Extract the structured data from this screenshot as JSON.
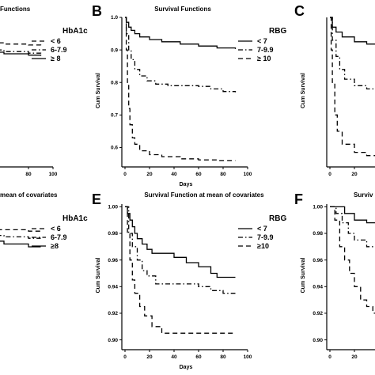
{
  "panels": [
    {
      "letter": "",
      "title": "Functions"
    },
    {
      "letter": "B",
      "title": "Survival Functions"
    },
    {
      "letter": "C",
      "title": ""
    },
    {
      "letter": "",
      "title": "mean of covariates"
    },
    {
      "letter": "E",
      "title": "Survival Function at mean of covariates"
    },
    {
      "letter": "F",
      "title": "Surviv"
    }
  ],
  "colors": {
    "line": "#000000",
    "background": "#ffffff"
  },
  "chart_data": [
    {
      "type": "line",
      "title": "Functions",
      "xlabel": "",
      "ylabel": "",
      "x_ticks": [
        "0",
        "80",
        "100"
      ],
      "xlim": [
        0,
        100
      ],
      "ylim": [
        0.55,
        1.0
      ],
      "legend_title": "HbA1c",
      "legend_position": "top-right",
      "series": [
        {
          "name": "< 6",
          "dash": "dashed",
          "points": [
            [
              0,
              0.93
            ],
            [
              20,
              0.925
            ],
            [
              40,
              0.922
            ],
            [
              60,
              0.918
            ],
            [
              80,
              0.915
            ],
            [
              90,
              0.914
            ]
          ]
        },
        {
          "name": "6-7.9",
          "dash": "dashdot",
          "points": [
            [
              0,
              0.925
            ],
            [
              20,
              0.91
            ],
            [
              40,
              0.9
            ],
            [
              60,
              0.895
            ],
            [
              80,
              0.89
            ],
            [
              90,
              0.889
            ]
          ]
        },
        {
          "name": "≥ 8",
          "dash": "solid",
          "points": [
            [
              0,
              0.915
            ],
            [
              20,
              0.9
            ],
            [
              40,
              0.893
            ],
            [
              60,
              0.888
            ],
            [
              80,
              0.884
            ],
            [
              90,
              0.882
            ]
          ]
        }
      ]
    },
    {
      "type": "line",
      "title": "Survival Functions",
      "xlabel": "Days",
      "ylabel": "Cum Survival",
      "x_ticks": [
        "0",
        "20",
        "40",
        "60",
        "80",
        "100"
      ],
      "y_ticks": [
        "0.6",
        "0.7",
        "0.8",
        "0.9",
        "1.0"
      ],
      "xlim": [
        0,
        100
      ],
      "ylim": [
        0.55,
        1.0
      ],
      "legend_title": "RBG",
      "legend_position": "top-right",
      "series": [
        {
          "name": "< 7",
          "dash": "solid",
          "points": [
            [
              0,
              1.0
            ],
            [
              1,
              0.985
            ],
            [
              3,
              0.97
            ],
            [
              5,
              0.96
            ],
            [
              8,
              0.95
            ],
            [
              12,
              0.94
            ],
            [
              20,
              0.932
            ],
            [
              30,
              0.925
            ],
            [
              45,
              0.918
            ],
            [
              60,
              0.912
            ],
            [
              75,
              0.906
            ],
            [
              90,
              0.903
            ]
          ]
        },
        {
          "name": "7-9.9",
          "dash": "dashdot",
          "points": [
            [
              0,
              1.0
            ],
            [
              1,
              0.95
            ],
            [
              3,
              0.9
            ],
            [
              5,
              0.87
            ],
            [
              8,
              0.84
            ],
            [
              12,
              0.82
            ],
            [
              18,
              0.805
            ],
            [
              25,
              0.795
            ],
            [
              35,
              0.79
            ],
            [
              55,
              0.79
            ],
            [
              60,
              0.788
            ],
            [
              70,
              0.78
            ],
            [
              80,
              0.772
            ],
            [
              90,
              0.77
            ]
          ]
        },
        {
          "name": "≥ 10",
          "dash": "dashed",
          "points": [
            [
              0,
              1.0
            ],
            [
              1,
              0.9
            ],
            [
              2,
              0.8
            ],
            [
              3,
              0.72
            ],
            [
              4,
              0.67
            ],
            [
              6,
              0.63
            ],
            [
              8,
              0.61
            ],
            [
              12,
              0.59
            ],
            [
              20,
              0.578
            ],
            [
              30,
              0.572
            ],
            [
              45,
              0.565
            ],
            [
              60,
              0.562
            ],
            [
              75,
              0.56
            ],
            [
              90,
              0.56
            ]
          ]
        }
      ]
    },
    {
      "type": "line",
      "title": "",
      "xlabel": "",
      "ylabel": "Cum Survival",
      "x_ticks": [
        "0",
        "20"
      ],
      "xlim": [
        0,
        100
      ],
      "ylim": [
        0.55,
        1.0
      ],
      "legend_position": "none",
      "series": [
        {
          "dash": "solid",
          "points": [
            [
              0,
              1.0
            ],
            [
              2,
              0.97
            ],
            [
              5,
              0.955
            ],
            [
              10,
              0.94
            ],
            [
              20,
              0.925
            ],
            [
              30,
              0.918
            ],
            [
              40,
              0.912
            ],
            [
              50,
              0.908
            ]
          ]
        },
        {
          "dash": "dashdot",
          "points": [
            [
              0,
              1.0
            ],
            [
              2,
              0.93
            ],
            [
              5,
              0.88
            ],
            [
              8,
              0.84
            ],
            [
              12,
              0.81
            ],
            [
              20,
              0.79
            ],
            [
              30,
              0.78
            ],
            [
              40,
              0.775
            ],
            [
              50,
              0.772
            ]
          ]
        },
        {
          "dash": "dashed",
          "points": [
            [
              0,
              1.0
            ],
            [
              1,
              0.9
            ],
            [
              2,
              0.8
            ],
            [
              4,
              0.7
            ],
            [
              6,
              0.65
            ],
            [
              10,
              0.61
            ],
            [
              20,
              0.585
            ],
            [
              30,
              0.575
            ],
            [
              40,
              0.568
            ],
            [
              50,
              0.565
            ]
          ]
        }
      ]
    },
    {
      "type": "line",
      "title": "mean of covariates",
      "xlabel": "",
      "ylabel": "",
      "xlim": [
        0,
        100
      ],
      "ylim": [
        0.9,
        1.0
      ],
      "legend_title": "HbA1c",
      "legend_position": "top-right",
      "series": [
        {
          "name": "< 6",
          "dash": "dashed",
          "points": [
            [
              0,
              0.985
            ],
            [
              20,
              0.983
            ],
            [
              40,
              0.982
            ],
            [
              60,
              0.982
            ],
            [
              80,
              0.981
            ],
            [
              90,
              0.981
            ]
          ]
        },
        {
          "name": "6-7.9",
          "dash": "dashdot",
          "points": [
            [
              0,
              0.984
            ],
            [
              20,
              0.98
            ],
            [
              40,
              0.978
            ],
            [
              60,
              0.977
            ],
            [
              80,
              0.976
            ],
            [
              90,
              0.976
            ]
          ]
        },
        {
          "name": "≥8",
          "dash": "solid",
          "points": [
            [
              0,
              0.982
            ],
            [
              20,
              0.977
            ],
            [
              40,
              0.974
            ],
            [
              60,
              0.972
            ],
            [
              80,
              0.97
            ],
            [
              90,
              0.97
            ]
          ]
        }
      ]
    },
    {
      "type": "line",
      "title": "Survival Function at mean of covariates",
      "xlabel": "Days",
      "ylabel": "Cum Survival",
      "x_ticks": [
        "0",
        "20",
        "40",
        "60",
        "80",
        "100"
      ],
      "y_ticks": [
        "0.90",
        "0.92",
        "0.94",
        "0.96",
        "0.98",
        "1.00"
      ],
      "xlim": [
        0,
        100
      ],
      "ylim": [
        0.895,
        1.002
      ],
      "legend_title": "RBG",
      "legend_position": "top-right",
      "series": [
        {
          "name": "< 7",
          "dash": "solid",
          "points": [
            [
              0,
              1.0
            ],
            [
              2,
              0.995
            ],
            [
              4,
              0.99
            ],
            [
              6,
              0.985
            ],
            [
              8,
              0.98
            ],
            [
              10,
              0.976
            ],
            [
              14,
              0.972
            ],
            [
              18,
              0.968
            ],
            [
              22,
              0.965
            ],
            [
              35,
              0.965
            ],
            [
              40,
              0.962
            ],
            [
              50,
              0.958
            ],
            [
              60,
              0.955
            ],
            [
              70,
              0.95
            ],
            [
              75,
              0.947
            ],
            [
              90,
              0.947
            ]
          ]
        },
        {
          "name": "7-9.9",
          "dash": "dashdot",
          "points": [
            [
              0,
              1.0
            ],
            [
              3,
              0.98
            ],
            [
              6,
              0.97
            ],
            [
              10,
              0.96
            ],
            [
              14,
              0.952
            ],
            [
              18,
              0.948
            ],
            [
              25,
              0.942
            ],
            [
              40,
              0.942
            ],
            [
              55,
              0.942
            ],
            [
              60,
              0.94
            ],
            [
              70,
              0.937
            ],
            [
              80,
              0.935
            ],
            [
              90,
              0.935
            ]
          ]
        },
        {
          "name": "≥10",
          "dash": "dashed",
          "points": [
            [
              0,
              1.0
            ],
            [
              2,
              0.98
            ],
            [
              4,
              0.96
            ],
            [
              6,
              0.945
            ],
            [
              8,
              0.935
            ],
            [
              12,
              0.925
            ],
            [
              16,
              0.918
            ],
            [
              22,
              0.91
            ],
            [
              30,
              0.905
            ],
            [
              45,
              0.905
            ],
            [
              90,
              0.905
            ]
          ]
        }
      ]
    },
    {
      "type": "line",
      "title": "Surviv",
      "xlabel": "",
      "ylabel": "Cum Survival",
      "x_ticks": [
        "0",
        "20"
      ],
      "y_ticks": [
        "0.90",
        "0.92",
        "0.94",
        "0.96",
        "0.98",
        "1.00"
      ],
      "xlim": [
        0,
        100
      ],
      "ylim": [
        0.895,
        1.002
      ],
      "legend_position": "none",
      "series": [
        {
          "dash": "solid",
          "points": [
            [
              0,
              1.0
            ],
            [
              8,
              1.0
            ],
            [
              12,
              0.995
            ],
            [
              20,
              0.99
            ],
            [
              30,
              0.988
            ],
            [
              40,
              0.986
            ],
            [
              45,
              0.985
            ]
          ]
        },
        {
          "dash": "dashdot",
          "points": [
            [
              0,
              1.0
            ],
            [
              5,
              0.995
            ],
            [
              10,
              0.988
            ],
            [
              15,
              0.98
            ],
            [
              20,
              0.975
            ],
            [
              30,
              0.97
            ],
            [
              40,
              0.965
            ],
            [
              45,
              0.962
            ]
          ]
        },
        {
          "dash": "dashed",
          "points": [
            [
              0,
              1.0
            ],
            [
              4,
              0.99
            ],
            [
              8,
              0.97
            ],
            [
              12,
              0.96
            ],
            [
              16,
              0.95
            ],
            [
              20,
              0.94
            ],
            [
              25,
              0.93
            ],
            [
              30,
              0.925
            ],
            [
              35,
              0.92
            ],
            [
              40,
              0.915
            ],
            [
              45,
              0.912
            ]
          ]
        }
      ]
    }
  ]
}
